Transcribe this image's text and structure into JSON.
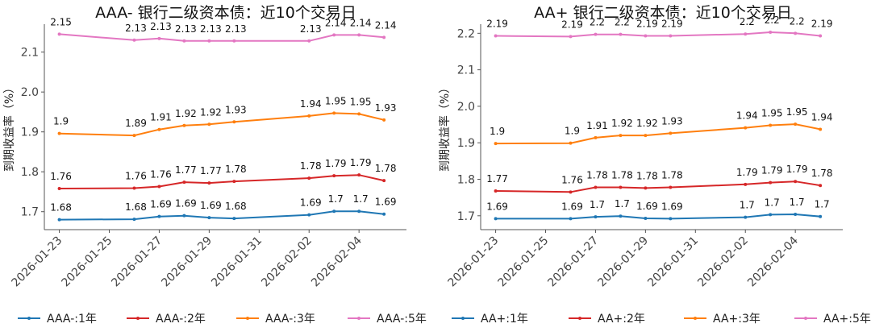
{
  "colors": {
    "1y": "#1f77b4",
    "2y": "#d62728",
    "3y": "#ff7f0e",
    "5y": "#e377c2"
  },
  "chart_data": [
    {
      "type": "line",
      "title": "AAA- 银行二级资本债：近10个交易日",
      "ylabel": "到期收益率（%）",
      "xlabel": "",
      "ylim": [
        1.655,
        2.17
      ],
      "yticks": [
        1.7,
        1.8,
        1.9,
        2.0,
        2.1
      ],
      "ytick_labels": [
        "1.7",
        "1.8",
        "1.9",
        "2.0",
        "2.1"
      ],
      "xlim": [
        -0.6,
        13.9
      ],
      "xticks": [
        0,
        2,
        4,
        6,
        8,
        10,
        12
      ],
      "xtick_labels": [
        "2026-01-23",
        "2026-01-25",
        "2026-01-27",
        "2026-01-29",
        "2026-01-31",
        "2026-02-02",
        "2026-02-04"
      ],
      "x": [
        0,
        3,
        4,
        5,
        6,
        7,
        10,
        11,
        12,
        13
      ],
      "series": [
        {
          "name": "AAA-:1年",
          "key": "1y",
          "values": [
            1.68,
            1.681,
            1.688,
            1.69,
            1.685,
            1.683,
            1.692,
            1.701,
            1.701,
            1.694
          ],
          "labels": [
            "1.68",
            "1.68",
            "1.69",
            "1.69",
            "1.69",
            "1.68",
            "1.69",
            "1.7",
            "1.7",
            "1.69"
          ]
        },
        {
          "name": "AAA-:2年",
          "key": "2y",
          "values": [
            1.758,
            1.759,
            1.763,
            1.774,
            1.772,
            1.776,
            1.784,
            1.79,
            1.792,
            1.778
          ],
          "labels": [
            "1.76",
            "1.76",
            "1.76",
            "1.77",
            "1.77",
            "1.78",
            "1.78",
            "1.79",
            "1.79",
            "1.78"
          ]
        },
        {
          "name": "AAA-:3年",
          "key": "3y",
          "values": [
            1.896,
            1.891,
            1.906,
            1.916,
            1.919,
            1.925,
            1.94,
            1.947,
            1.945,
            1.93
          ],
          "labels": [
            "1.9",
            "1.89",
            "1.91",
            "1.92",
            "1.92",
            "1.93",
            "1.94",
            "1.95",
            "1.95",
            "1.93"
          ]
        },
        {
          "name": "AAA-:5年",
          "key": "5y",
          "values": [
            2.145,
            2.13,
            2.134,
            2.128,
            2.128,
            2.128,
            2.128,
            2.143,
            2.143,
            2.137
          ],
          "labels": [
            "2.15",
            "2.13",
            "2.13",
            "2.13",
            "2.13",
            "2.13",
            "2.13",
            "2.14",
            "2.14",
            "2.14"
          ]
        }
      ]
    },
    {
      "type": "line",
      "title": "AA+ 银行二级资本债：近10个交易日",
      "ylabel": "到期收益率（%）",
      "xlabel": "",
      "ylim": [
        1.662,
        2.225
      ],
      "yticks": [
        1.7,
        1.8,
        1.9,
        2.0,
        2.1,
        2.2
      ],
      "ytick_labels": [
        "1.7",
        "1.8",
        "1.9",
        "2.0",
        "2.1",
        "2.2"
      ],
      "xlim": [
        -0.6,
        13.9
      ],
      "xticks": [
        0,
        2,
        4,
        6,
        8,
        10,
        12
      ],
      "xtick_labels": [
        "2026-01-23",
        "2026-01-25",
        "2026-01-27",
        "2026-01-29",
        "2026-01-31",
        "2026-02-02",
        "2026-02-04"
      ],
      "x": [
        0,
        3,
        4,
        5,
        6,
        7,
        10,
        11,
        12,
        13
      ],
      "series": [
        {
          "name": "AA+:1年",
          "key": "1y",
          "values": [
            1.692,
            1.692,
            1.697,
            1.699,
            1.693,
            1.692,
            1.696,
            1.703,
            1.704,
            1.698
          ],
          "labels": [
            "1.69",
            "1.69",
            "1.7",
            "1.7",
            "1.69",
            "1.69",
            "1.7",
            "1.7",
            "1.7",
            "1.7"
          ]
        },
        {
          "name": "AA+:2年",
          "key": "2y",
          "values": [
            1.768,
            1.765,
            1.778,
            1.778,
            1.776,
            1.778,
            1.786,
            1.791,
            1.794,
            1.783
          ],
          "labels": [
            "1.77",
            "1.76",
            "1.78",
            "1.78",
            "1.78",
            "1.78",
            "1.79",
            "1.79",
            "1.79",
            "1.78"
          ]
        },
        {
          "name": "AA+:3年",
          "key": "3y",
          "values": [
            1.898,
            1.899,
            1.914,
            1.92,
            1.92,
            1.926,
            1.941,
            1.948,
            1.951,
            1.937
          ],
          "labels": [
            "1.9",
            "1.9",
            "1.91",
            "1.92",
            "1.92",
            "1.93",
            "1.94",
            "1.95",
            "1.95",
            "1.94"
          ]
        },
        {
          "name": "AA+:5年",
          "key": "5y",
          "values": [
            2.193,
            2.191,
            2.197,
            2.197,
            2.193,
            2.193,
            2.198,
            2.203,
            2.2,
            2.193
          ],
          "labels": [
            "2.19",
            "2.19",
            "2.2",
            "2.2",
            "2.19",
            "2.19",
            "2.2",
            "2.2",
            "2.2",
            "2.19"
          ]
        }
      ]
    }
  ]
}
